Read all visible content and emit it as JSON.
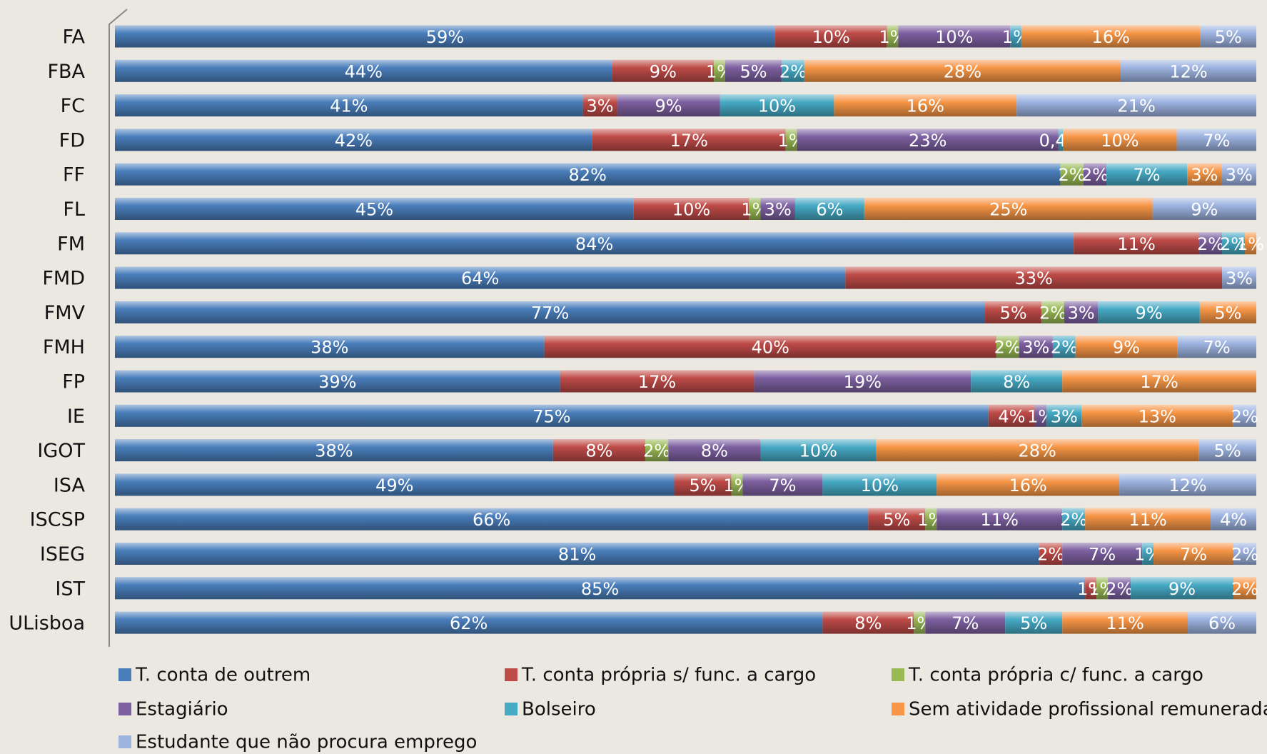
{
  "chart_data": {
    "type": "bar",
    "orientation": "horizontal",
    "stacked": "percent",
    "legend": "bottom",
    "categories": [
      "FA",
      "FBA",
      "FC",
      "FD",
      "FF",
      "FL",
      "FM",
      "FMD",
      "FMV",
      "FMH",
      "FP",
      "IE",
      "IGOT",
      "ISA",
      "ISCSP",
      "ISEG",
      "IST",
      "ULisboa"
    ],
    "series": [
      {
        "name": "T. conta de outrem",
        "color": "#4a7ebb",
        "values": [
          59,
          44,
          41,
          42,
          82,
          45,
          84,
          64,
          77,
          38,
          39,
          75,
          38,
          49,
          66,
          81,
          85,
          62
        ],
        "value_labels": [
          "59%",
          "44%",
          "41%",
          "42%",
          "82%",
          "45%",
          "84%",
          "64%",
          "77%",
          "38%",
          "39%",
          "75%",
          "38%",
          "49%",
          "66%",
          "81%",
          "85%",
          "62%"
        ]
      },
      {
        "name": "T. conta própria s/ func. a cargo",
        "color": "#be4b48",
        "values": [
          10,
          9,
          3,
          17,
          null,
          10,
          11,
          33,
          5,
          40,
          17,
          4,
          8,
          5,
          5,
          2,
          1,
          8
        ],
        "value_labels": [
          "10%",
          "9%",
          "3%",
          "17%",
          null,
          "10%",
          "11%",
          "33%",
          "5%",
          "40%",
          "17%",
          "4%",
          "8%",
          "5%",
          "5%",
          "2%",
          "1%",
          "8%"
        ]
      },
      {
        "name": "T. conta própria c/ func. a cargo",
        "color": "#98b954",
        "values": [
          1,
          1,
          null,
          1,
          2,
          1,
          null,
          null,
          2,
          2,
          null,
          null,
          2,
          1,
          1,
          null,
          1,
          1
        ],
        "value_labels": [
          "1%",
          "1%",
          null,
          "1%",
          "2%",
          "1%",
          null,
          null,
          "2%",
          "2%",
          null,
          null,
          "2%",
          "1%",
          "1%",
          null,
          "1%",
          "1%"
        ]
      },
      {
        "name": "Estagiário",
        "color": "#7d60a0",
        "values": [
          10,
          5,
          9,
          23,
          2,
          3,
          2,
          null,
          3,
          3,
          19,
          1,
          8,
          7,
          11,
          7,
          2,
          7
        ],
        "value_labels": [
          "10%",
          "5%",
          "9%",
          "23%",
          "2%",
          "3%",
          "2%",
          null,
          "3%",
          "3%",
          "19%",
          "1%",
          "8%",
          "7%",
          "11%",
          "7%",
          "2%",
          "7%"
        ]
      },
      {
        "name": "Bolseiro",
        "color": "#46aac5",
        "values": [
          1,
          2,
          10,
          0.4,
          7,
          6,
          2,
          null,
          9,
          2,
          8,
          3,
          10,
          10,
          2,
          1,
          9,
          5
        ],
        "value_labels": [
          "1%",
          "2%",
          "10%",
          "0,4%",
          "7%",
          "6%",
          "2%",
          null,
          "9%",
          "2%",
          "8%",
          "3%",
          "10%",
          "10%",
          "2%",
          "1%",
          "9%",
          "5%"
        ]
      },
      {
        "name": "Sem atividade profissional remunerada",
        "color": "#f79646",
        "values": [
          16,
          28,
          16,
          10,
          3,
          25,
          1,
          null,
          5,
          9,
          17,
          13,
          28,
          16,
          11,
          7,
          2,
          11
        ],
        "value_labels": [
          "16%",
          "28%",
          "16%",
          "10%",
          "3%",
          "25%",
          "1%",
          null,
          "5%",
          "9%",
          "17%",
          "13%",
          "28%",
          "16%",
          "11%",
          "7%",
          "2%",
          "11%"
        ]
      },
      {
        "name": "Estudante que não procura emprego",
        "color": "#9db3e0",
        "values": [
          5,
          12,
          21,
          7,
          3,
          9,
          null,
          3,
          null,
          7,
          null,
          2,
          5,
          12,
          4,
          2,
          null,
          6
        ],
        "value_labels": [
          "5%",
          "12%",
          "21%",
          "7%",
          "3%",
          "9%",
          null,
          "3%",
          null,
          "7%",
          null,
          "2%",
          "5%",
          "12%",
          "4%",
          "2%",
          null,
          "6%"
        ]
      }
    ]
  }
}
